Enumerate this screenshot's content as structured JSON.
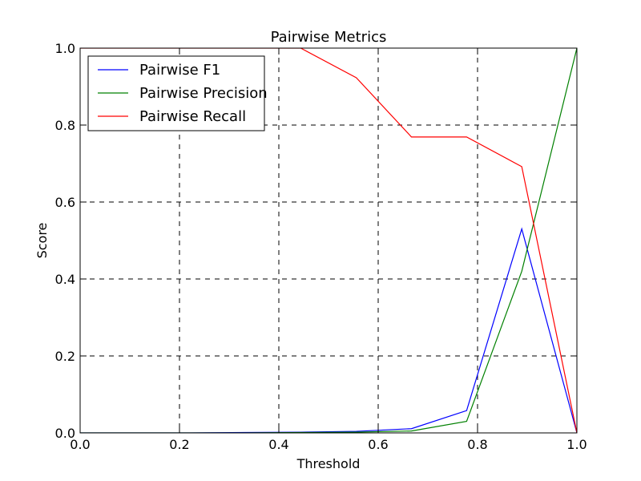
{
  "chart_data": {
    "type": "line",
    "title": "Pairwise Metrics",
    "xlabel": "Threshold",
    "ylabel": "Score",
    "xlim": [
      0.0,
      1.0
    ],
    "ylim": [
      0.0,
      1.0
    ],
    "xticks": [
      "0.0",
      "0.2",
      "0.4",
      "0.6",
      "0.8",
      "1.0"
    ],
    "yticks": [
      "0.0",
      "0.2",
      "0.4",
      "0.6",
      "0.8",
      "1.0"
    ],
    "grid": true,
    "legend_position": "top-left",
    "x": [
      0.0,
      0.111,
      0.222,
      0.333,
      0.444,
      0.556,
      0.667,
      0.778,
      0.889,
      1.0
    ],
    "series": [
      {
        "name": "Pairwise F1",
        "color": "#0000ff",
        "values": [
          0.0,
          0.0,
          0.0,
          0.001,
          0.002,
          0.004,
          0.011,
          0.058,
          0.53,
          0.0
        ]
      },
      {
        "name": "Pairwise Precision",
        "color": "#008000",
        "values": [
          0.0,
          0.0,
          0.0,
          0.0,
          0.001,
          0.002,
          0.005,
          0.03,
          0.42,
          1.0
        ]
      },
      {
        "name": "Pairwise Recall",
        "color": "#ff0000",
        "values": [
          1.0,
          1.0,
          1.0,
          1.0,
          1.0,
          0.923,
          0.769,
          0.769,
          0.692,
          0.0
        ]
      }
    ]
  }
}
